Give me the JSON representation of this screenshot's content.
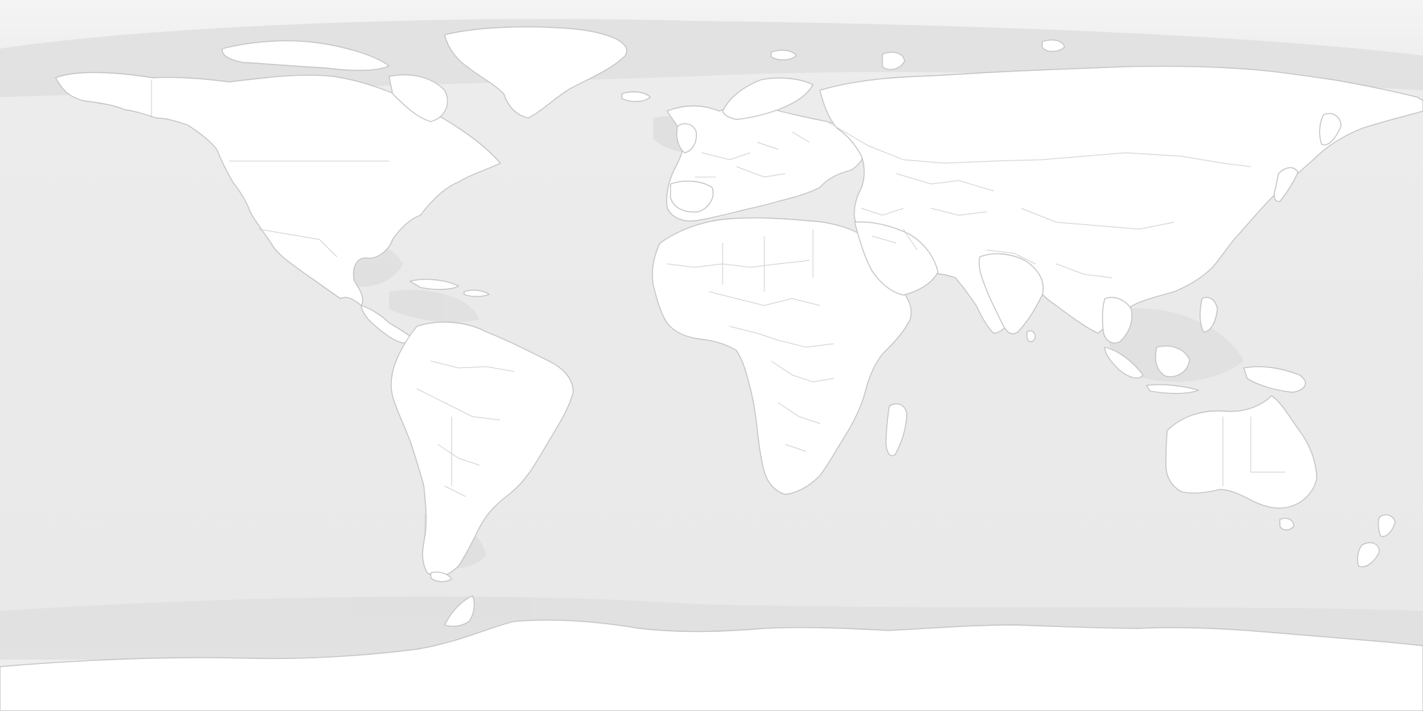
{
  "map": {
    "projection": "equirectangular",
    "style": "light-gray-relief",
    "labels_visible": false,
    "colors": {
      "ocean": "#eaeaea",
      "ocean_deep": "#e3e3e3",
      "shelf": "#dedede",
      "land": "#ffffff",
      "border": "#c9c9c9",
      "coast": "#bdbdbd",
      "ice": "#fdfdfd"
    },
    "layers": [
      {
        "id": "ocean",
        "name": "ocean"
      },
      {
        "id": "bathymetry",
        "name": "bathymetry"
      },
      {
        "id": "land",
        "name": "land"
      },
      {
        "id": "borders",
        "name": "country-borders"
      }
    ]
  }
}
